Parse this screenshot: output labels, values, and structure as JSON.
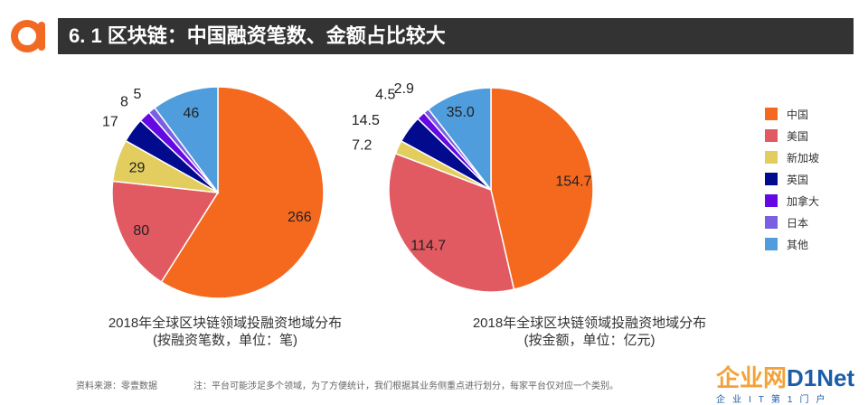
{
  "header": {
    "title": "6. 1 区块链：中国融资笔数、金额占比较大"
  },
  "legend": {
    "items": [
      {
        "label": "中国",
        "color": "#f5691f"
      },
      {
        "label": "美国",
        "color": "#e15a61"
      },
      {
        "label": "新加坡",
        "color": "#e2cd5e"
      },
      {
        "label": "英国",
        "color": "#020b8d"
      },
      {
        "label": "加拿大",
        "color": "#6408e4"
      },
      {
        "label": "日本",
        "color": "#7a5fe2"
      },
      {
        "label": "其他",
        "color": "#4f9ddc"
      }
    ]
  },
  "chart_data": [
    {
      "type": "pie",
      "title": "2018年全球区块链领域投融资地域分布",
      "subtitle": "(按融资笔数，单位：笔)",
      "categories": [
        "中国",
        "美国",
        "新加坡",
        "英国",
        "加拿大",
        "日本",
        "其他"
      ],
      "values": [
        266,
        80,
        29,
        17,
        8,
        5,
        46
      ],
      "labels": [
        "266",
        "80",
        "29",
        "17",
        "8",
        "5",
        "46"
      ]
    },
    {
      "type": "pie",
      "title": "2018年全球区块链领域投融资地域分布",
      "subtitle": "(按金额，单位：亿元)",
      "categories": [
        "中国",
        "美国",
        "新加坡",
        "英国",
        "加拿大",
        "日本",
        "其他"
      ],
      "values": [
        154.7,
        114.7,
        7.2,
        14.5,
        4.5,
        2.9,
        35.0
      ],
      "labels": [
        "154.7",
        "114.7",
        "7.2",
        "14.5",
        "4.5",
        "2.9",
        "35.0"
      ]
    }
  ],
  "footer": {
    "source": "资料来源：零壹数据",
    "note": "注：平台可能涉足多个领域，为了方便统计，我们根据其业务侧重点进行划分，每家平台仅对应一个类别。"
  },
  "watermark": {
    "main_a": "企业网",
    "main_b": "D1Net",
    "sub": "企业IT第1门户"
  }
}
